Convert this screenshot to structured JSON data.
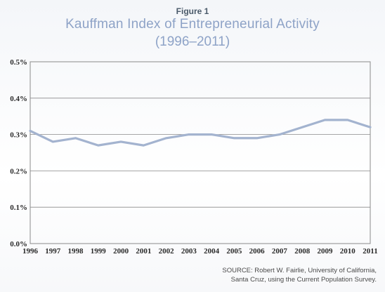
{
  "figure_label": "Figure 1",
  "title": "Kauffman Index of Entrepreneurial Activity",
  "subtitle": "(1996–2011)",
  "source_lines": [
    "SOURCE: Robert W. Fairlie, University of California,",
    "Santa Cruz, using the Current Population Survey."
  ],
  "colors": {
    "line": "#a3b3cf",
    "grid": "#8a8a8a",
    "title": "#8ea3c7"
  },
  "chart_data": {
    "type": "line",
    "title": "Kauffman Index of Entrepreneurial Activity",
    "subtitle": "(1996–2011)",
    "xlabel": "",
    "ylabel": "",
    "x": [
      "1996",
      "1997",
      "1998",
      "1999",
      "2000",
      "2001",
      "2002",
      "2003",
      "2004",
      "2005",
      "2006",
      "2007",
      "2008",
      "2009",
      "2010",
      "2011"
    ],
    "series": [
      {
        "values": [
          0.31,
          0.28,
          0.29,
          0.27,
          0.28,
          0.27,
          0.29,
          0.3,
          0.3,
          0.29,
          0.29,
          0.3,
          0.32,
          0.34,
          0.34,
          0.32
        ]
      }
    ],
    "yticks": [
      "0.0%",
      "0.1%",
      "0.2%",
      "0.3%",
      "0.4%",
      "0.5%"
    ],
    "ylim": [
      0,
      0.5
    ],
    "grid": true,
    "legend": "none"
  }
}
